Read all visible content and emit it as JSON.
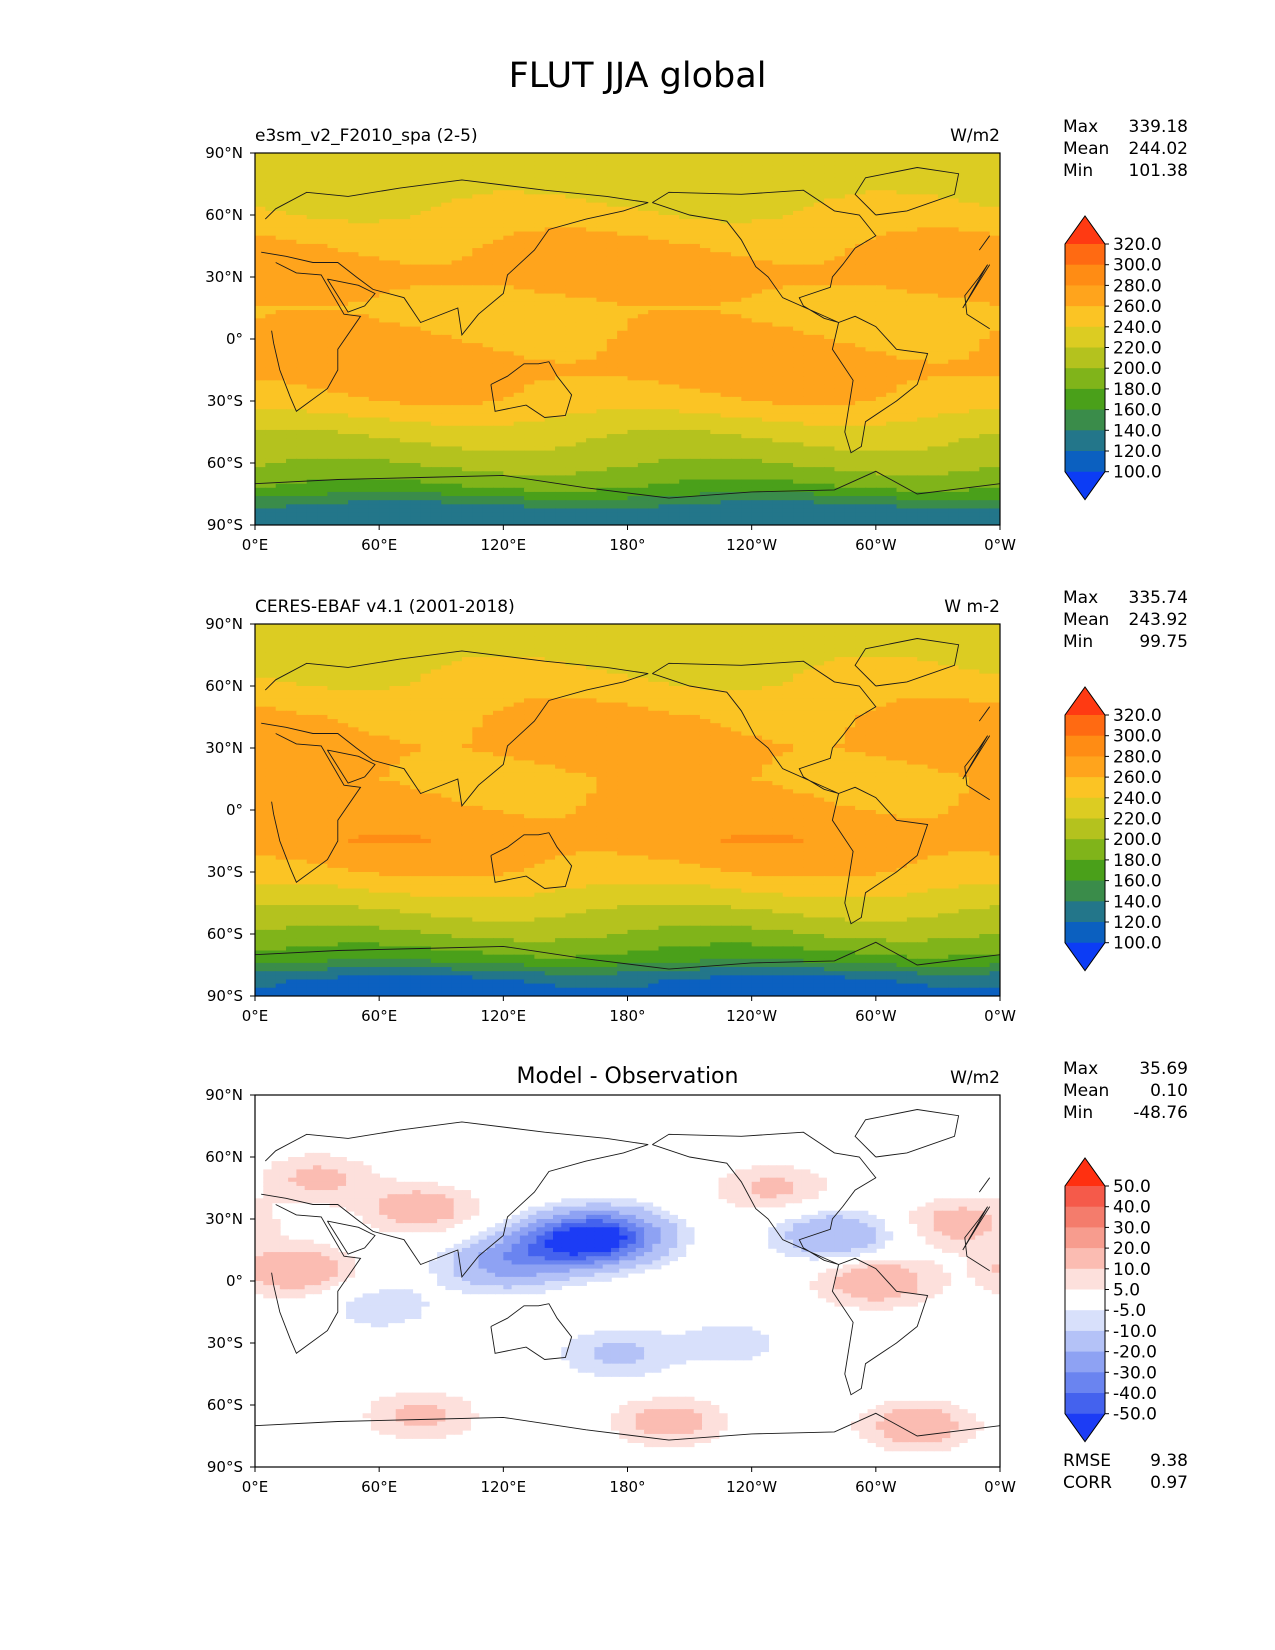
{
  "figure": {
    "title": "FLUT JJA global"
  },
  "chart_data": [
    {
      "type": "heatmap",
      "title": "",
      "subtitle_left": "e3sm_v2_F2010_spa (2-5)",
      "units": "W/m2",
      "stats": [
        {
          "label": "Max",
          "value": "339.18"
        },
        {
          "label": "Mean",
          "value": "244.02"
        },
        {
          "label": "Min",
          "value": "101.38"
        }
      ],
      "x_ticks": [
        "0°E",
        "60°E",
        "120°E",
        "180°",
        "120°W",
        "60°W",
        "0°W"
      ],
      "y_ticks": [
        "90°N",
        "60°N",
        "30°N",
        "0°",
        "30°S",
        "60°S",
        "90°S"
      ],
      "xlim": [
        0,
        360
      ],
      "ylim": [
        -90,
        90
      ],
      "colorbar": {
        "levels": [
          "320.0",
          "300.0",
          "280.0",
          "260.0",
          "240.0",
          "220.0",
          "200.0",
          "180.0",
          "160.0",
          "140.0",
          "120.0",
          "100.0"
        ],
        "colors": [
          "#ff3a12",
          "#ff6a12",
          "#ff8c14",
          "#ffa41c",
          "#fbc424",
          "#dccc22",
          "#b4c21e",
          "#80b41a",
          "#4aa01a",
          "#3a8c4a",
          "#23768a",
          "#0b60c0",
          "#0c3cf5"
        ],
        "extend": "both"
      },
      "fields": {
        "bands": [
          {
            "lat": 90,
            "value": 228
          },
          {
            "lat": 75,
            "value": 228
          },
          {
            "lat": 60,
            "value": 244
          },
          {
            "lat": 45,
            "value": 262
          },
          {
            "lat": 30,
            "value": 272
          },
          {
            "lat": 15,
            "value": 252
          },
          {
            "lat": 0,
            "value": 262
          },
          {
            "lat": -15,
            "value": 270
          },
          {
            "lat": -30,
            "value": 256
          },
          {
            "lat": -45,
            "value": 226
          },
          {
            "lat": -60,
            "value": 204
          },
          {
            "lat": -72,
            "value": 178
          },
          {
            "lat": -82,
            "value": 132
          },
          {
            "lat": -90,
            "value": 128
          }
        ]
      }
    },
    {
      "type": "heatmap",
      "title": "",
      "subtitle_left": "CERES-EBAF v4.1 (2001-2018)",
      "units": "W m-2",
      "stats": [
        {
          "label": "Max",
          "value": "335.74"
        },
        {
          "label": "Mean",
          "value": "243.92"
        },
        {
          "label": "Min",
          "value": "99.75"
        }
      ],
      "x_ticks": [
        "0°E",
        "60°E",
        "120°E",
        "180°",
        "120°W",
        "60°W",
        "0°W"
      ],
      "y_ticks": [
        "90°N",
        "60°N",
        "30°N",
        "0°",
        "30°S",
        "60°S",
        "90°S"
      ],
      "xlim": [
        0,
        360
      ],
      "ylim": [
        -90,
        90
      ],
      "colorbar": {
        "levels": [
          "320.0",
          "300.0",
          "280.0",
          "260.0",
          "240.0",
          "220.0",
          "200.0",
          "180.0",
          "160.0",
          "140.0",
          "120.0",
          "100.0"
        ],
        "colors": [
          "#ff3a12",
          "#ff6a12",
          "#ff8c14",
          "#ffa41c",
          "#fbc424",
          "#dccc22",
          "#b4c21e",
          "#80b41a",
          "#4aa01a",
          "#3a8c4a",
          "#23768a",
          "#0b60c0",
          "#0c3cf5"
        ],
        "extend": "both"
      },
      "fields": {
        "bands": [
          {
            "lat": 90,
            "value": 228
          },
          {
            "lat": 75,
            "value": 232
          },
          {
            "lat": 60,
            "value": 246
          },
          {
            "lat": 45,
            "value": 262
          },
          {
            "lat": 30,
            "value": 268
          },
          {
            "lat": 15,
            "value": 258
          },
          {
            "lat": 0,
            "value": 266
          },
          {
            "lat": -15,
            "value": 274
          },
          {
            "lat": -30,
            "value": 258
          },
          {
            "lat": -45,
            "value": 228
          },
          {
            "lat": -60,
            "value": 200
          },
          {
            "lat": -72,
            "value": 170
          },
          {
            "lat": -82,
            "value": 118
          },
          {
            "lat": -90,
            "value": 108
          }
        ]
      }
    },
    {
      "type": "heatmap",
      "title": "Model - Observation",
      "subtitle_left": "",
      "units": "W/m2",
      "stats": [
        {
          "label": "Max",
          "value": "35.69"
        },
        {
          "label": "Mean",
          "value": "0.10"
        },
        {
          "label": "Min",
          "value": "-48.76"
        }
      ],
      "extra_stats": [
        {
          "label": "RMSE",
          "value": "9.38"
        },
        {
          "label": "CORR",
          "value": "0.97"
        }
      ],
      "x_ticks": [
        "0°E",
        "60°E",
        "120°E",
        "180°",
        "120°W",
        "60°W",
        "0°W"
      ],
      "y_ticks": [
        "90°N",
        "60°N",
        "30°N",
        "0°",
        "30°S",
        "60°S",
        "90°S"
      ],
      "xlim": [
        0,
        360
      ],
      "ylim": [
        -90,
        90
      ],
      "colorbar": {
        "levels": [
          "50.0",
          "40.0",
          "30.0",
          "20.0",
          "10.0",
          "5.0",
          "-5.0",
          "-10.0",
          "-20.0",
          "-30.0",
          "-40.0",
          "-50.0"
        ],
        "colors": [
          "#ff3010",
          "#f55a4a",
          "#f47c6c",
          "#f79c8e",
          "#fbbcb2",
          "#fde0dc",
          "#ffffff",
          "#d8e0fb",
          "#b4c2f7",
          "#8ea2f3",
          "#6a84f0",
          "#4462ee",
          "#1c3cf5"
        ],
        "extend": "both"
      },
      "fields": {
        "anomalies": [
          {
            "lon": 30,
            "lat": 50,
            "value": 12
          },
          {
            "lon": 80,
            "lat": 35,
            "value": 15
          },
          {
            "lon": 20,
            "lat": 5,
            "value": 18
          },
          {
            "lon": 150,
            "lat": 18,
            "value": -35
          },
          {
            "lon": 170,
            "lat": 22,
            "value": -42
          },
          {
            "lon": 120,
            "lat": 8,
            "value": -22
          },
          {
            "lon": 280,
            "lat": 22,
            "value": -20
          },
          {
            "lon": 300,
            "lat": 0,
            "value": 18
          },
          {
            "lon": 250,
            "lat": 45,
            "value": 12
          },
          {
            "lon": 340,
            "lat": 28,
            "value": 14
          },
          {
            "lon": 175,
            "lat": -35,
            "value": -12
          },
          {
            "lon": 230,
            "lat": -30,
            "value": -8
          },
          {
            "lon": 60,
            "lat": -12,
            "value": -9
          },
          {
            "lon": 80,
            "lat": -65,
            "value": 12
          },
          {
            "lon": 200,
            "lat": -68,
            "value": 14
          },
          {
            "lon": 320,
            "lat": -70,
            "value": 16
          }
        ]
      }
    }
  ]
}
